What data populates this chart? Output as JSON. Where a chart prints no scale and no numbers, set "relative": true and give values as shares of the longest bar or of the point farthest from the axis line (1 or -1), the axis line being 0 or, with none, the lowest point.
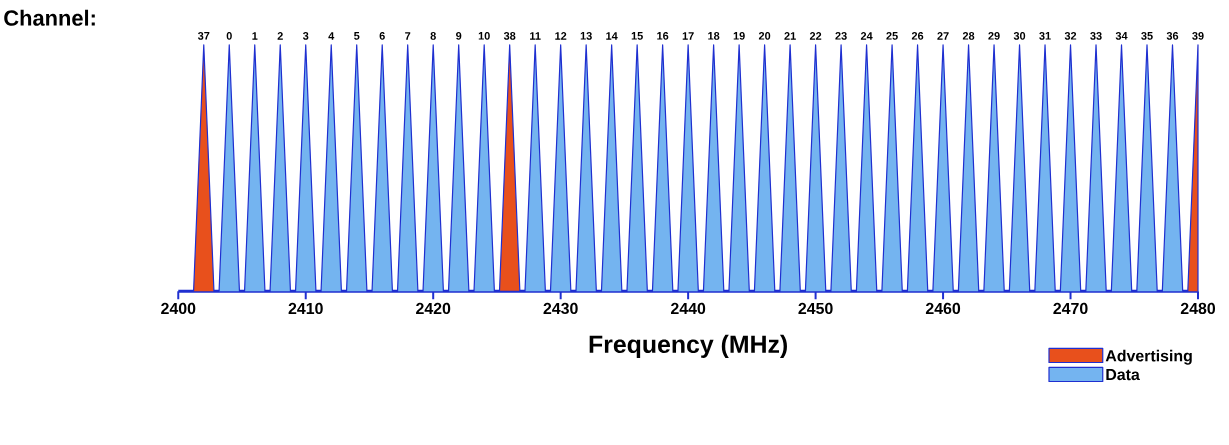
{
  "chart_data": {
    "type": "area",
    "relative": true,
    "xlabel": "Frequency (MHz)",
    "xlim": [
      2400,
      2480
    ],
    "xticks": [
      2400,
      2410,
      2420,
      2430,
      2440,
      2450,
      2460,
      2470,
      2480
    ],
    "legend": "bottom right",
    "grid": false,
    "series": [
      {
        "name": "Advertising",
        "color": "#e8501c",
        "x": [
          2401.2,
          2402,
          2402.8,
          2425.2,
          2426,
          2426.8,
          2479.2,
          2480,
          2480
        ],
        "values": [
          0,
          1,
          0,
          0,
          1,
          0,
          0,
          1,
          0
        ]
      },
      {
        "name": "Data",
        "color": "#74b4f0",
        "x": [
          2403.2,
          2404,
          2404.8,
          2405.2,
          2406,
          2406.8,
          2407.2,
          2408,
          2408.8,
          2409.2,
          2410,
          2410.8,
          2411.2,
          2412,
          2412.8,
          2413.2,
          2414,
          2414.8,
          2415.2,
          2416,
          2416.8,
          2417.2,
          2418,
          2418.8,
          2419.2,
          2420,
          2420.8,
          2421.2,
          2422,
          2422.8,
          2423.2,
          2424,
          2424.8,
          2427.2,
          2428,
          2428.8,
          2429.2,
          2430,
          2430.8,
          2431.2,
          2432,
          2432.8,
          2433.2,
          2434,
          2434.8,
          2435.2,
          2436,
          2436.8,
          2437.2,
          2438,
          2438.8,
          2439.2,
          2440,
          2440.8,
          2441.2,
          2442,
          2442.8,
          2443.2,
          2444,
          2444.8,
          2445.2,
          2446,
          2446.8,
          2447.2,
          2448,
          2448.8,
          2449.2,
          2450,
          2450.8,
          2451.2,
          2452,
          2452.8,
          2453.2,
          2454,
          2454.8,
          2455.2,
          2456,
          2456.8,
          2457.2,
          2458,
          2458.8,
          2459.2,
          2460,
          2460.8,
          2461.2,
          2462,
          2462.8,
          2463.2,
          2464,
          2464.8,
          2465.2,
          2466,
          2466.8,
          2467.2,
          2468,
          2468.8,
          2469.2,
          2470,
          2470.8,
          2471.2,
          2472,
          2472.8,
          2473.2,
          2474,
          2474.8,
          2475.2,
          2476,
          2476.8,
          2477.2,
          2478,
          2478.8
        ],
        "values": [
          0,
          1,
          0,
          0,
          1,
          0,
          0,
          1,
          0,
          0,
          1,
          0,
          0,
          1,
          0,
          0,
          1,
          0,
          0,
          1,
          0,
          0,
          1,
          0,
          0,
          1,
          0,
          0,
          1,
          0,
          0,
          1,
          0,
          0,
          1,
          0,
          0,
          1,
          0,
          0,
          1,
          0,
          0,
          1,
          0,
          0,
          1,
          0,
          0,
          1,
          0,
          0,
          1,
          0,
          0,
          1,
          0,
          0,
          1,
          0,
          0,
          1,
          0,
          0,
          1,
          0,
          0,
          1,
          0,
          0,
          1,
          0,
          0,
          1,
          0,
          0,
          1,
          0,
          0,
          1,
          0,
          0,
          1,
          0,
          0,
          1,
          0,
          0,
          1,
          0,
          0,
          1,
          0,
          0,
          1,
          0,
          0,
          1,
          0,
          0,
          1,
          0,
          0,
          1,
          0,
          0,
          1,
          0,
          0,
          1,
          0
        ]
      }
    ],
    "annotations": [
      "Channel:",
      {
        "text": "37",
        "x": 2402,
        "y": 1
      },
      {
        "text": "0",
        "x": 2404,
        "y": 1
      },
      {
        "text": "1",
        "x": 2406,
        "y": 1
      },
      {
        "text": "2",
        "x": 2408,
        "y": 1
      },
      {
        "text": "3",
        "x": 2410,
        "y": 1
      },
      {
        "text": "4",
        "x": 2412,
        "y": 1
      },
      {
        "text": "5",
        "x": 2414,
        "y": 1
      },
      {
        "text": "6",
        "x": 2416,
        "y": 1
      },
      {
        "text": "7",
        "x": 2418,
        "y": 1
      },
      {
        "text": "8",
        "x": 2420,
        "y": 1
      },
      {
        "text": "9",
        "x": 2422,
        "y": 1
      },
      {
        "text": "10",
        "x": 2424,
        "y": 1
      },
      {
        "text": "38",
        "x": 2426,
        "y": 1
      },
      {
        "text": "11",
        "x": 2428,
        "y": 1
      },
      {
        "text": "12",
        "x": 2430,
        "y": 1
      },
      {
        "text": "13",
        "x": 2432,
        "y": 1
      },
      {
        "text": "14",
        "x": 2434,
        "y": 1
      },
      {
        "text": "15",
        "x": 2436,
        "y": 1
      },
      {
        "text": "16",
        "x": 2438,
        "y": 1
      },
      {
        "text": "17",
        "x": 2440,
        "y": 1
      },
      {
        "text": "18",
        "x": 2442,
        "y": 1
      },
      {
        "text": "19",
        "x": 2444,
        "y": 1
      },
      {
        "text": "20",
        "x": 2446,
        "y": 1
      },
      {
        "text": "21",
        "x": 2448,
        "y": 1
      },
      {
        "text": "22",
        "x": 2450,
        "y": 1
      },
      {
        "text": "23",
        "x": 2452,
        "y": 1
      },
      {
        "text": "24",
        "x": 2454,
        "y": 1
      },
      {
        "text": "25",
        "x": 2456,
        "y": 1
      },
      {
        "text": "26",
        "x": 2458,
        "y": 1
      },
      {
        "text": "27",
        "x": 2460,
        "y": 1
      },
      {
        "text": "28",
        "x": 2462,
        "y": 1
      },
      {
        "text": "29",
        "x": 2464,
        "y": 1
      },
      {
        "text": "30",
        "x": 2466,
        "y": 1
      },
      {
        "text": "31",
        "x": 2468,
        "y": 1
      },
      {
        "text": "32",
        "x": 2470,
        "y": 1
      },
      {
        "text": "33",
        "x": 2472,
        "y": 1
      },
      {
        "text": "34",
        "x": 2474,
        "y": 1
      },
      {
        "text": "35",
        "x": 2476,
        "y": 1
      },
      {
        "text": "36",
        "x": 2478,
        "y": 1
      },
      {
        "text": "39",
        "x": 2480,
        "y": 1
      }
    ]
  }
}
